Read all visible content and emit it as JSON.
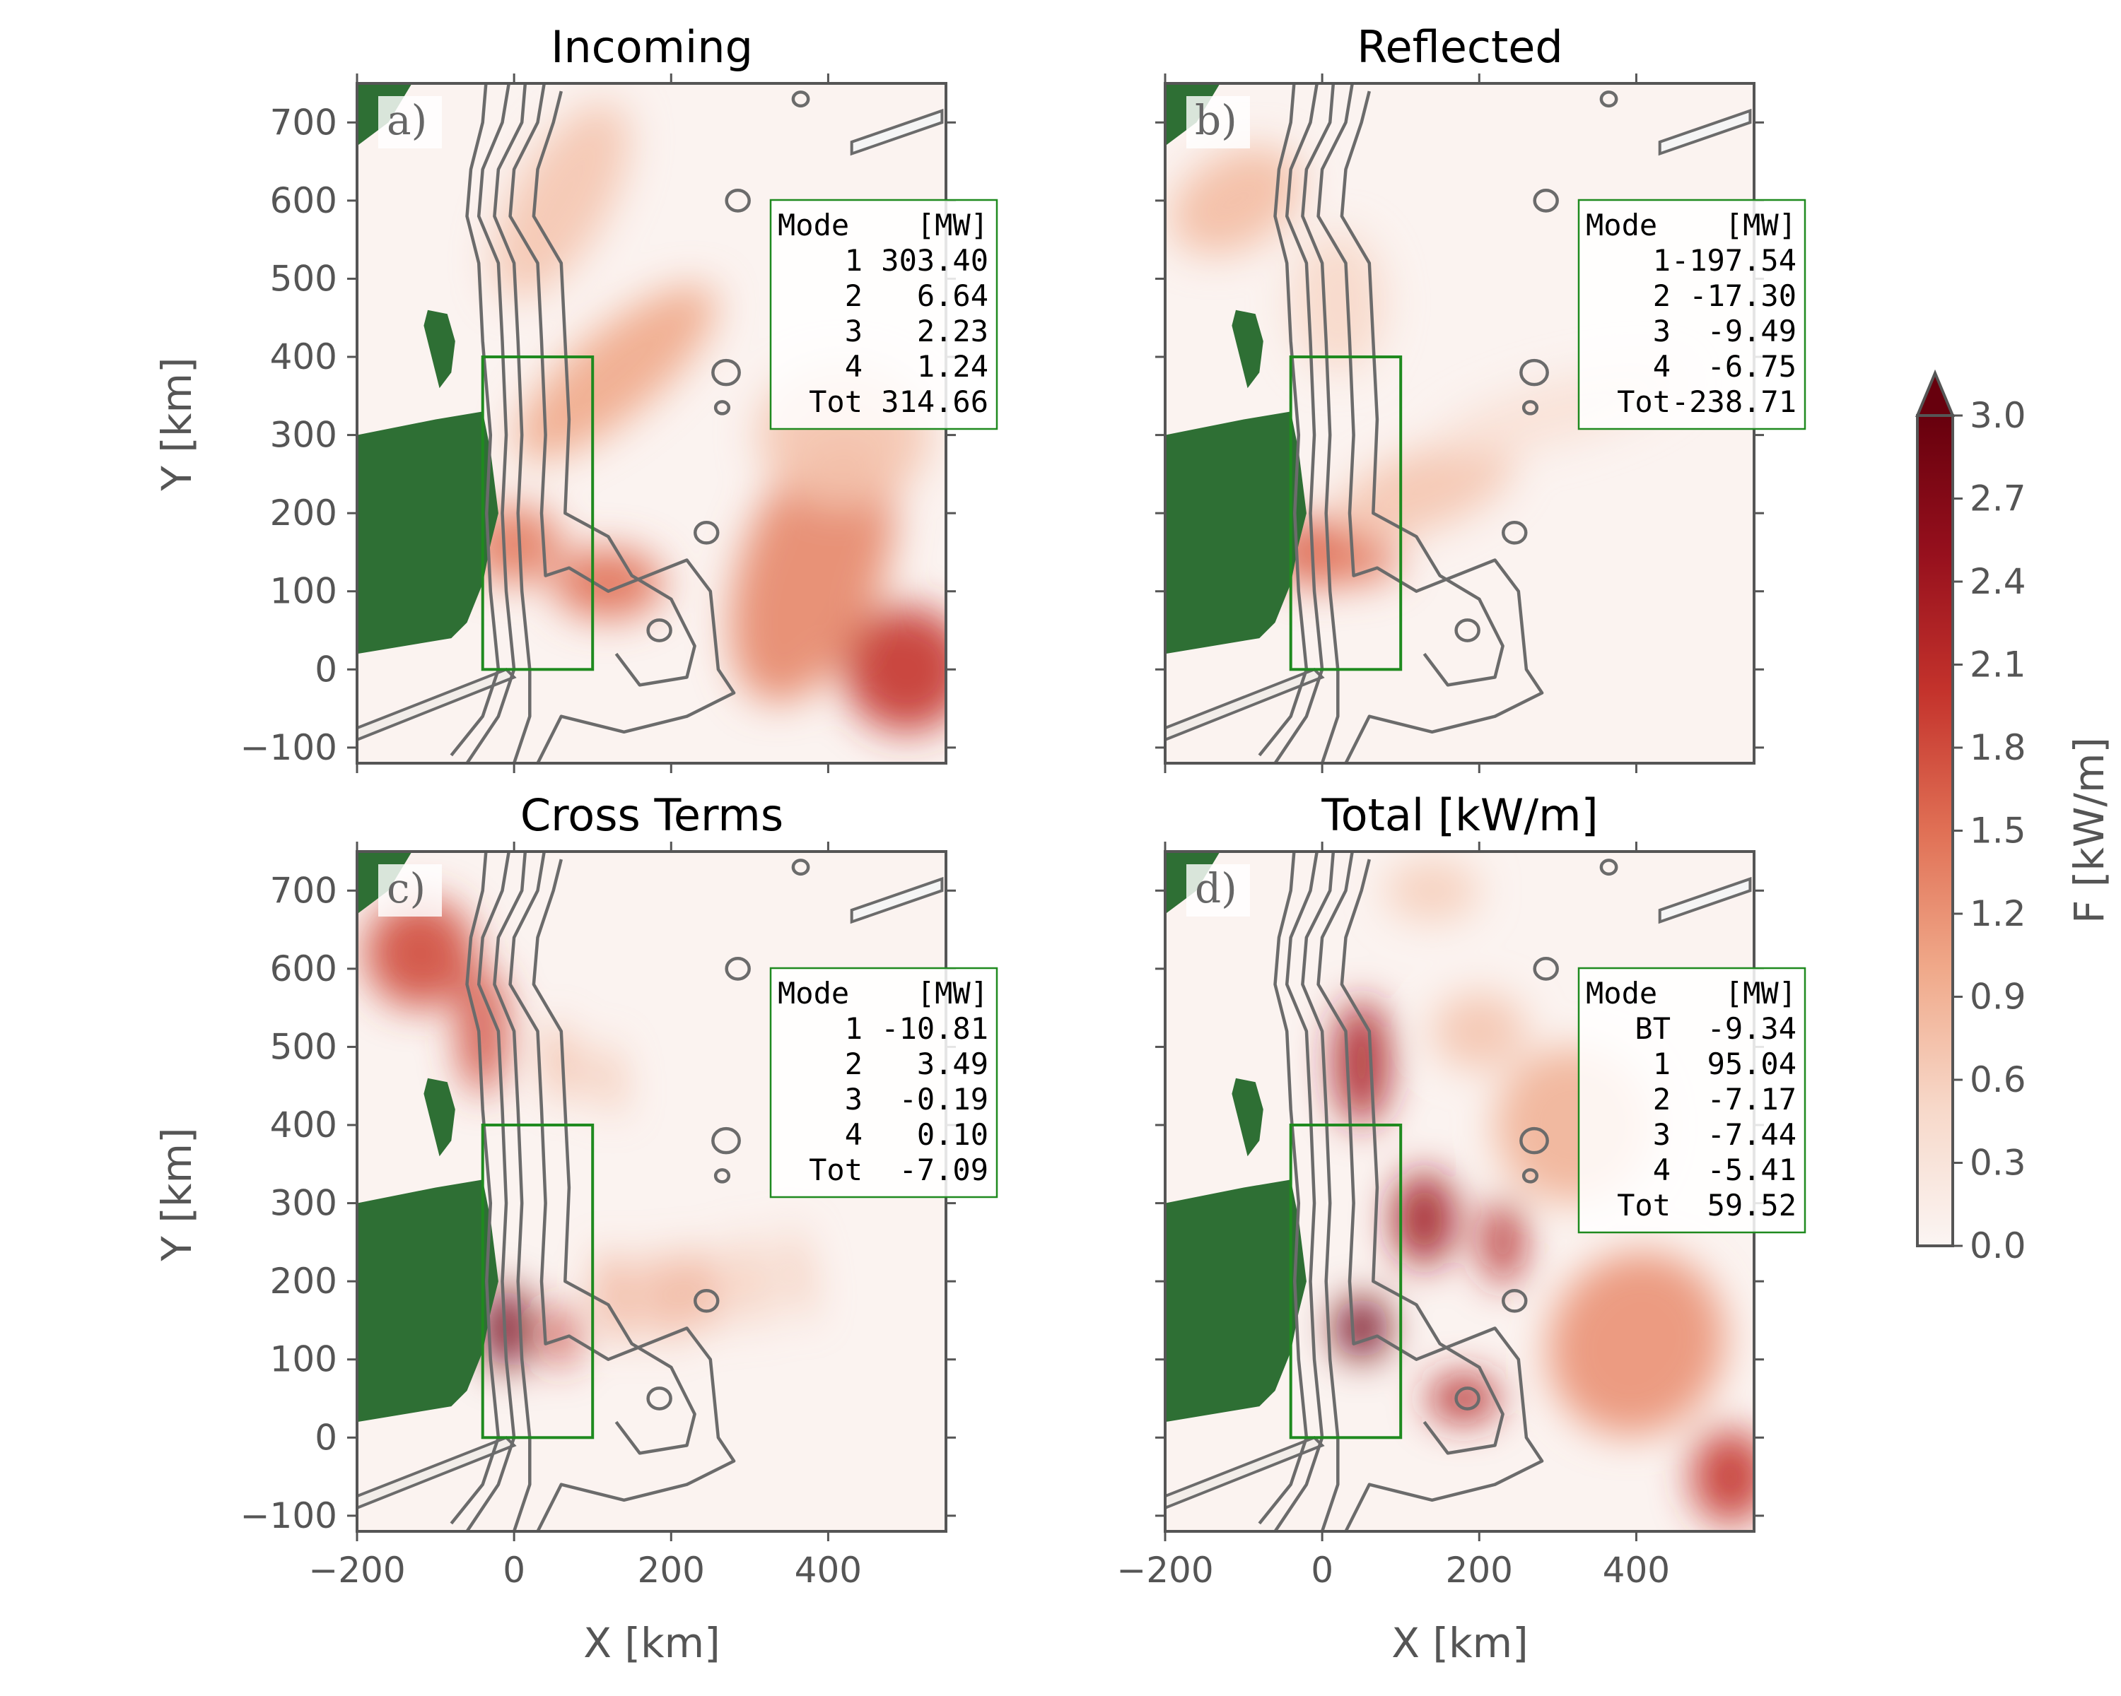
{
  "colors": {
    "land": "#2e6f34",
    "contour": "#6b6b6b",
    "box": "#1f8a1f",
    "axis": "#555555",
    "text": "#555555",
    "cmap": [
      "#fbf5f3",
      "#f7d8c9",
      "#f0a98a",
      "#e07055",
      "#c4332c",
      "#96101d",
      "#67000d"
    ]
  },
  "chart_data": {
    "type": "heatmap",
    "colorbar": {
      "label": "F [kW/m]",
      "min": 0.0,
      "max": 3.0,
      "ticks": [
        "0.0",
        "0.3",
        "0.6",
        "0.9",
        "1.2",
        "1.5",
        "1.8",
        "2.1",
        "2.4",
        "2.7",
        "3.0"
      ],
      "extend": "max"
    },
    "xlabel": "X [km]",
    "ylabel": "Y [km]",
    "xlim": [
      -200,
      550
    ],
    "ylim": [
      -120,
      750
    ],
    "xticks": [
      -200,
      0,
      200,
      400
    ],
    "xtick_labels": [
      "−200",
      "0",
      "200",
      "400"
    ],
    "yticks": [
      -100,
      0,
      100,
      200,
      300,
      400,
      500,
      600,
      700
    ],
    "ytick_labels": [
      "−100",
      "0",
      "100",
      "200",
      "300",
      "400",
      "500",
      "600",
      "700"
    ],
    "analysis_box": {
      "x": [
        -40,
        100
      ],
      "y": [
        0,
        400
      ]
    },
    "panels": [
      {
        "title": "Incoming",
        "letter": "a)",
        "table": {
          "header": [
            "Mode",
            "[MW]"
          ],
          "rows": [
            [
              "1",
              "303.40"
            ],
            [
              "2",
              "6.64"
            ],
            [
              "3",
              "2.23"
            ],
            [
              "4",
              "1.24"
            ],
            [
              "Tot",
              "314.66"
            ]
          ]
        },
        "blobs": [
          {
            "x": 130,
            "y": 380,
            "rx": 160,
            "ry": 55,
            "rot": -40,
            "v": 1.0
          },
          {
            "x": 60,
            "y": 600,
            "rx": 140,
            "ry": 60,
            "rot": -60,
            "v": 0.7
          },
          {
            "x": 0,
            "y": 160,
            "rx": 60,
            "ry": 50,
            "rot": 0,
            "v": 1.4
          },
          {
            "x": 120,
            "y": 110,
            "rx": 70,
            "ry": 45,
            "rot": 0,
            "v": 1.5
          },
          {
            "x": 380,
            "y": 130,
            "rx": 90,
            "ry": 180,
            "rot": 20,
            "v": 1.3
          },
          {
            "x": 500,
            "y": 0,
            "rx": 80,
            "ry": 80,
            "rot": 0,
            "v": 2.0
          },
          {
            "x": 420,
            "y": 300,
            "rx": 110,
            "ry": 90,
            "rot": 0,
            "v": 0.7
          }
        ]
      },
      {
        "title": "Reflected",
        "letter": "b)",
        "table": {
          "header": [
            "Mode",
            "[MW]"
          ],
          "rows": [
            [
              "1",
              "-197.54"
            ],
            [
              "2",
              "-17.30"
            ],
            [
              "3",
              "-9.49"
            ],
            [
              "4",
              "-6.75"
            ],
            [
              "Tot",
              "-238.71"
            ]
          ]
        },
        "blobs": [
          {
            "x": -10,
            "y": 150,
            "rx": 55,
            "ry": 45,
            "rot": 0,
            "v": 1.6
          },
          {
            "x": 40,
            "y": 140,
            "rx": 60,
            "ry": 30,
            "rot": 0,
            "v": 1.4
          },
          {
            "x": -110,
            "y": 600,
            "rx": 90,
            "ry": 60,
            "rot": -30,
            "v": 0.8
          },
          {
            "x": 130,
            "y": 230,
            "rx": 120,
            "ry": 50,
            "rot": -20,
            "v": 0.7
          },
          {
            "x": 300,
            "y": 330,
            "rx": 160,
            "ry": 40,
            "rot": -15,
            "v": 0.35
          },
          {
            "x": 20,
            "y": 470,
            "rx": 60,
            "ry": 90,
            "rot": 0,
            "v": 0.5
          }
        ]
      },
      {
        "title": "Cross Terms",
        "letter": "c)",
        "table": {
          "header": [
            "Mode",
            "[MW]"
          ],
          "rows": [
            [
              "1",
              "-10.81"
            ],
            [
              "2",
              "3.49"
            ],
            [
              "3",
              "-0.19"
            ],
            [
              "4",
              "0.10"
            ],
            [
              "Tot",
              "-7.09"
            ]
          ]
        },
        "blobs": [
          {
            "x": -10,
            "y": 140,
            "rx": 30,
            "ry": 55,
            "rot": 0,
            "v": 2.9
          },
          {
            "x": 60,
            "y": 130,
            "rx": 18,
            "ry": 40,
            "rot": 0,
            "v": 2.0
          },
          {
            "x": -120,
            "y": 620,
            "rx": 70,
            "ry": 70,
            "rot": 0,
            "v": 1.8
          },
          {
            "x": -40,
            "y": 520,
            "rx": 30,
            "ry": 80,
            "rot": 0,
            "v": 1.8
          },
          {
            "x": 130,
            "y": 180,
            "rx": 18,
            "ry": 60,
            "rot": -10,
            "v": 1.1
          },
          {
            "x": 190,
            "y": 180,
            "rx": 18,
            "ry": 60,
            "rot": -10,
            "v": 1.1
          },
          {
            "x": 240,
            "y": 190,
            "rx": 18,
            "ry": 55,
            "rot": -10,
            "v": 1.1
          },
          {
            "x": 300,
            "y": 200,
            "rx": 15,
            "ry": 60,
            "rot": -10,
            "v": 0.8
          },
          {
            "x": 360,
            "y": 210,
            "rx": 15,
            "ry": 60,
            "rot": -10,
            "v": 0.7
          },
          {
            "x": 60,
            "y": 480,
            "rx": 15,
            "ry": 50,
            "rot": -10,
            "v": 1.0
          },
          {
            "x": 120,
            "y": 460,
            "rx": 15,
            "ry": 45,
            "rot": -10,
            "v": 0.8
          }
        ]
      },
      {
        "title": "Total [kW/m]",
        "letter": "d)",
        "table": {
          "header": [
            "Mode",
            "[MW]"
          ],
          "rows": [
            [
              "BT",
              "-9.34"
            ],
            [
              "1",
              "95.04"
            ],
            [
              "2",
              "-7.17"
            ],
            [
              "3",
              "-7.44"
            ],
            [
              "4",
              "-5.41"
            ],
            [
              "Tot",
              "59.52"
            ]
          ]
        },
        "blobs": [
          {
            "x": 50,
            "y": 140,
            "rx": 35,
            "ry": 40,
            "rot": 0,
            "v": 2.9
          },
          {
            "x": 50,
            "y": 480,
            "rx": 35,
            "ry": 80,
            "rot": 0,
            "v": 2.3
          },
          {
            "x": 130,
            "y": 280,
            "rx": 40,
            "ry": 60,
            "rot": 0,
            "v": 2.4
          },
          {
            "x": 230,
            "y": 250,
            "rx": 25,
            "ry": 55,
            "rot": 0,
            "v": 2.2
          },
          {
            "x": 180,
            "y": 50,
            "rx": 45,
            "ry": 30,
            "rot": 0,
            "v": 2.2
          },
          {
            "x": 520,
            "y": -50,
            "rx": 50,
            "ry": 60,
            "rot": 0,
            "v": 2.0
          },
          {
            "x": 400,
            "y": 120,
            "rx": 110,
            "ry": 120,
            "rot": 30,
            "v": 1.2
          },
          {
            "x": 320,
            "y": 400,
            "rx": 100,
            "ry": 100,
            "rot": 0,
            "v": 0.9
          },
          {
            "x": 140,
            "y": 700,
            "rx": 60,
            "ry": 40,
            "rot": 0,
            "v": 0.6
          },
          {
            "x": 200,
            "y": 520,
            "rx": 60,
            "ry": 50,
            "rot": 0,
            "v": 0.7
          }
        ]
      }
    ]
  }
}
